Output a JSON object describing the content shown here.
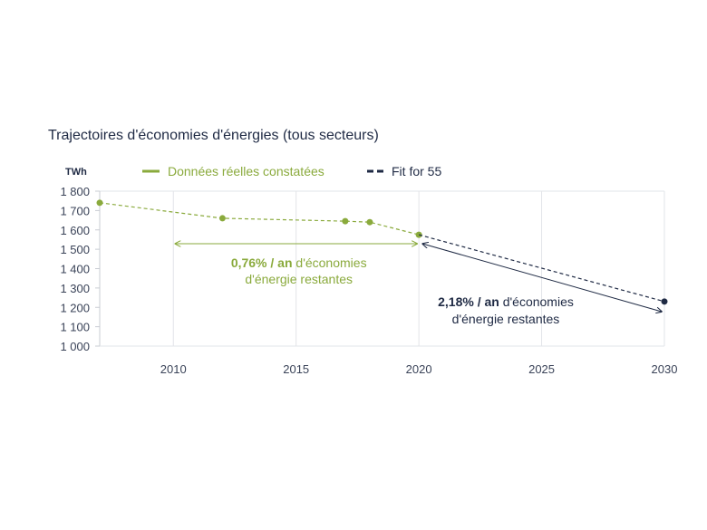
{
  "chart_data": {
    "type": "line",
    "title": "Trajectoires d'économies d'énergies (tous secteurs)",
    "ylabel": "TWh",
    "xlim": [
      2007,
      2030
    ],
    "ylim": [
      1000,
      1800
    ],
    "x_ticks": [
      2010,
      2015,
      2020,
      2025,
      2030
    ],
    "y_ticks": [
      1000,
      1100,
      1200,
      1300,
      1400,
      1500,
      1600,
      1700,
      1800
    ],
    "y_tick_labels": [
      "1 000",
      "1 100",
      "1 200",
      "1 300",
      "1 400",
      "1 500",
      "1 600",
      "1 700",
      "1 800"
    ],
    "grid": "vertical",
    "legend_position": "top",
    "series": [
      {
        "name": "Données réelles constatées",
        "color": "#8aaa3c",
        "style": "dashed-with-markers",
        "x": [
          2007,
          2012,
          2017,
          2018,
          2020
        ],
        "y": [
          1740,
          1660,
          1645,
          1640,
          1575
        ]
      },
      {
        "name": "Fit for 55",
        "color": "#1f2a44",
        "style": "dashed",
        "x": [
          2020,
          2030
        ],
        "y": [
          1575,
          1230
        ]
      }
    ],
    "annotations": [
      {
        "bold": "0,76% / an",
        "rest": " d'économies",
        "line2": "d'énergie restantes",
        "color": "#8aaa3c",
        "x_range": [
          2010,
          2020
        ]
      },
      {
        "bold": "2,18% / an",
        "rest": " d'économies",
        "line2": "d'énergie restantes",
        "color": "#1f2a44",
        "x_range": [
          2020,
          2030
        ]
      }
    ]
  }
}
